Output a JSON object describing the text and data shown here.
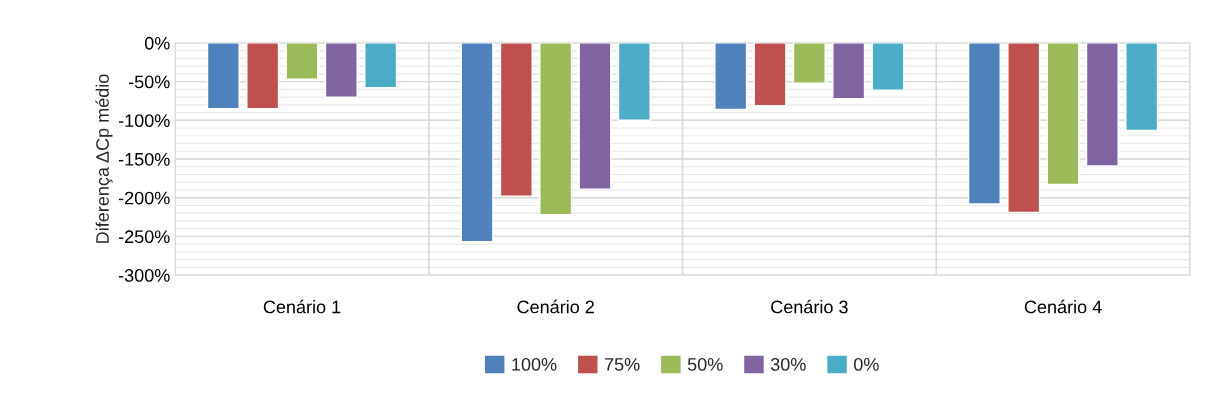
{
  "chart_data": {
    "type": "bar",
    "ylabel": "Diferença ΔCp médio",
    "categories": [
      "Cenário 1",
      "Cenário 2",
      "Cenário 3",
      "Cenário 4"
    ],
    "series": [
      {
        "name": "100%",
        "color": "#4f81bd",
        "values": [
          -85,
          -257,
          -86,
          -208
        ]
      },
      {
        "name": "75%",
        "color": "#c0504d",
        "values": [
          -85,
          -198,
          -81,
          -219
        ]
      },
      {
        "name": "50%",
        "color": "#9bbb59",
        "values": [
          -47,
          -222,
          -52,
          -183
        ]
      },
      {
        "name": "30%",
        "color": "#8064a2",
        "values": [
          -70,
          -189,
          -72,
          -159
        ]
      },
      {
        "name": "0%",
        "color": "#4bacc6",
        "values": [
          -58,
          -100,
          -61,
          -113
        ]
      }
    ],
    "ylim": [
      -300,
      0
    ],
    "yticks": [
      {
        "value": -300,
        "label": "-300%"
      },
      {
        "value": -250,
        "label": "-250%"
      },
      {
        "value": -200,
        "label": "-200%"
      },
      {
        "value": -150,
        "label": "-150%"
      },
      {
        "value": -100,
        "label": "-100%"
      },
      {
        "value": -50,
        "label": "-50%"
      },
      {
        "value": 0,
        "label": "0%"
      }
    ],
    "grid": "y",
    "legend": "bottom"
  }
}
